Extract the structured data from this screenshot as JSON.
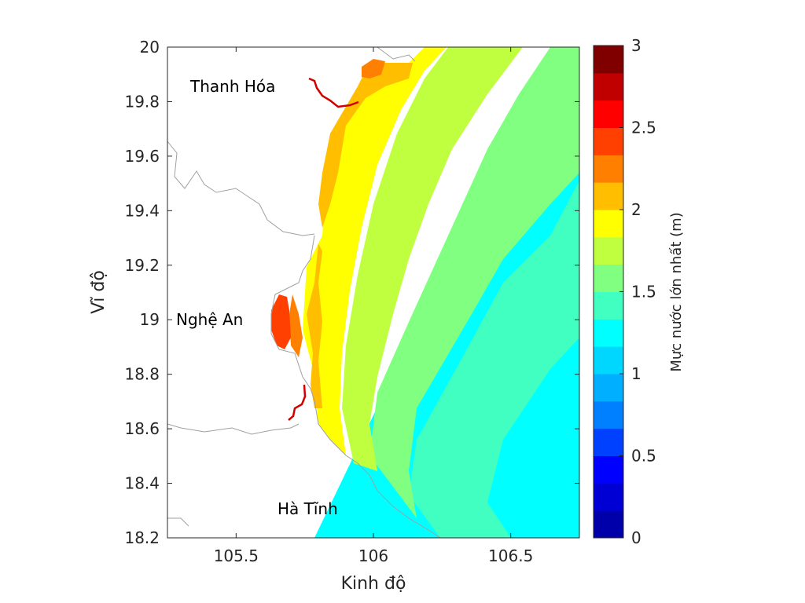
{
  "map": {
    "x_axis": {
      "label": "Kinh độ",
      "range": [
        105.25,
        106.75
      ],
      "ticks": [
        105.5,
        106,
        106.5
      ],
      "tick_labels": [
        "105.5",
        "106",
        "106.5"
      ]
    },
    "y_axis": {
      "label": "Vĩ độ",
      "range": [
        18.2,
        20.0
      ],
      "ticks": [
        18.2,
        18.4,
        18.6,
        18.8,
        19.0,
        19.2,
        19.4,
        19.6,
        19.8,
        20.0
      ],
      "tick_labels": [
        "18.2",
        "18.4",
        "18.6",
        "18.8",
        "19",
        "19.2",
        "19.4",
        "19.6",
        "19.8",
        "20"
      ]
    },
    "place_labels": [
      {
        "name": "Thanh Hóa",
        "lon": 105.55,
        "lat": 19.85
      },
      {
        "name": "Nghệ An",
        "lon": 105.43,
        "lat": 19.0
      },
      {
        "name": "Hà Tĩnh",
        "lon": 105.78,
        "lat": 18.3
      }
    ],
    "colorbar": {
      "label": "Mực nước lớn nhất (m)",
      "range": [
        0,
        3
      ],
      "ticks": [
        0,
        0.5,
        1,
        1.5,
        2,
        2.5,
        3
      ],
      "tick_labels": [
        "0",
        "0.5",
        "1",
        "1.5",
        "2",
        "2.5",
        "3"
      ],
      "colors": [
        "#0000aa",
        "#0000d4",
        "#0000ff",
        "#0040ff",
        "#0080ff",
        "#00afff",
        "#00d7ff",
        "#00ffff",
        "#40ffc0",
        "#80ff80",
        "#c0ff40",
        "#ffff00",
        "#ffbf00",
        "#ff8000",
        "#ff4000",
        "#ff0000",
        "#c00000",
        "#800000"
      ]
    },
    "zones": [
      {
        "level": "1.0-1.25",
        "color": "#00ffff"
      },
      {
        "level": "1.25-1.5",
        "color": "#40ffc0"
      },
      {
        "level": "1.5-1.75",
        "color": "#80ff80"
      },
      {
        "level": "1.75-2.0",
        "color": "#c0ff40"
      },
      {
        "level": "2.0-2.25",
        "color": "#ffff00"
      },
      {
        "level": "2.25-2.5",
        "color": "#ffbf00"
      },
      {
        "level": "2.5-2.75",
        "color": "#ff8000"
      },
      {
        "level": "2.75-3.0",
        "color": "#ff4000"
      }
    ]
  }
}
